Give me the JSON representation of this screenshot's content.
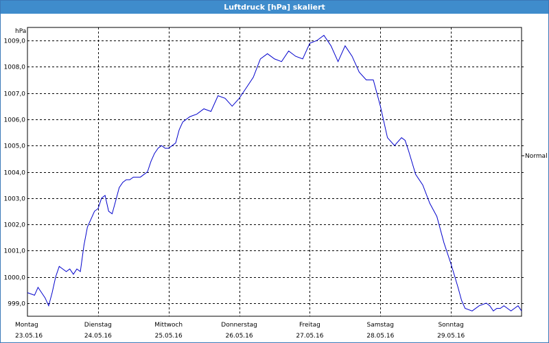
{
  "window": {
    "title": "Luftdruck [hPa] skaliert"
  },
  "chart_data": {
    "type": "line",
    "title": "Luftdruck [hPa] skaliert",
    "ylabel": "hPa",
    "ylim": [
      998.5,
      1009.5
    ],
    "yticks": [
      "999,0",
      "1000,0",
      "1001,0",
      "1002,0",
      "1003,0",
      "1004,0",
      "1005,0",
      "1006,0",
      "1007,0",
      "1008,0",
      "1009,0"
    ],
    "ytick_values": [
      999,
      1000,
      1001,
      1002,
      1003,
      1004,
      1005,
      1006,
      1007,
      1008,
      1009
    ],
    "xlim": [
      0,
      7
    ],
    "xtick_values": [
      1,
      2,
      3,
      4,
      5,
      6
    ],
    "xticks": [
      {
        "day": "Montag",
        "date": "23.05.16"
      },
      {
        "day": "Dienstag",
        "date": "24.05.16"
      },
      {
        "day": "Mittwoch",
        "date": "25.05.16"
      },
      {
        "day": "Donnerstag",
        "date": "26.05.16"
      },
      {
        "day": "Freitag",
        "date": "27.05.16"
      },
      {
        "day": "Samstag",
        "date": "28.05.16"
      },
      {
        "day": "Sonntag",
        "date": "29.05.16"
      }
    ],
    "grid": true,
    "legend": {
      "position": "right",
      "entries": [
        "Normal"
      ]
    },
    "series": [
      {
        "name": "Normal",
        "color": "#0000cc",
        "x": [
          0,
          0.1,
          0.15,
          0.2,
          0.25,
          0.3,
          0.35,
          0.4,
          0.45,
          0.5,
          0.55,
          0.6,
          0.65,
          0.7,
          0.75,
          0.8,
          0.85,
          0.9,
          0.95,
          1.0,
          1.05,
          1.1,
          1.15,
          1.2,
          1.25,
          1.3,
          1.35,
          1.4,
          1.45,
          1.5,
          1.55,
          1.6,
          1.65,
          1.7,
          1.75,
          1.8,
          1.85,
          1.9,
          1.95,
          2.0,
          2.05,
          2.1,
          2.15,
          2.2,
          2.3,
          2.4,
          2.5,
          2.6,
          2.7,
          2.8,
          2.9,
          3.0,
          3.1,
          3.2,
          3.3,
          3.4,
          3.5,
          3.6,
          3.7,
          3.8,
          3.9,
          4.0,
          4.1,
          4.2,
          4.3,
          4.4,
          4.5,
          4.6,
          4.7,
          4.8,
          4.9,
          5.0,
          5.1,
          5.2,
          5.3,
          5.35,
          5.4,
          5.5,
          5.6,
          5.7,
          5.8,
          5.9,
          6.0,
          6.1,
          6.15,
          6.2,
          6.3,
          6.4,
          6.5,
          6.55,
          6.6,
          6.65,
          6.7,
          6.75,
          6.8,
          6.85,
          6.9,
          6.95,
          7.0
        ],
        "y": [
          999.4,
          999.3,
          999.6,
          999.4,
          999.2,
          998.9,
          999.4,
          1000.0,
          1000.4,
          1000.3,
          1000.2,
          1000.3,
          1000.1,
          1000.3,
          1000.2,
          1001.2,
          1001.9,
          1002.2,
          1002.5,
          1002.6,
          1003.0,
          1003.1,
          1002.5,
          1002.4,
          1002.9,
          1003.4,
          1003.6,
          1003.7,
          1003.7,
          1003.8,
          1003.8,
          1003.8,
          1003.9,
          1004.0,
          1004.4,
          1004.7,
          1004.9,
          1005.0,
          1004.9,
          1004.9,
          1005.0,
          1005.1,
          1005.6,
          1005.9,
          1006.1,
          1006.2,
          1006.4,
          1006.3,
          1006.9,
          1006.8,
          1006.5,
          1006.8,
          1007.2,
          1007.6,
          1008.3,
          1008.5,
          1008.3,
          1008.2,
          1008.6,
          1008.4,
          1008.3,
          1008.9,
          1009.0,
          1009.2,
          1008.8,
          1008.2,
          1008.8,
          1008.4,
          1007.8,
          1007.5,
          1007.5,
          1006.5,
          1005.3,
          1005.0,
          1005.3,
          1005.2,
          1004.8,
          1003.9,
          1003.5,
          1002.8,
          1002.3,
          1001.3,
          1000.5,
          999.6,
          999.1,
          998.8,
          998.7,
          998.9,
          999.0,
          998.9,
          998.7,
          998.8,
          998.8,
          998.9,
          998.8,
          998.7,
          998.8,
          998.9,
          998.7
        ]
      }
    ]
  }
}
